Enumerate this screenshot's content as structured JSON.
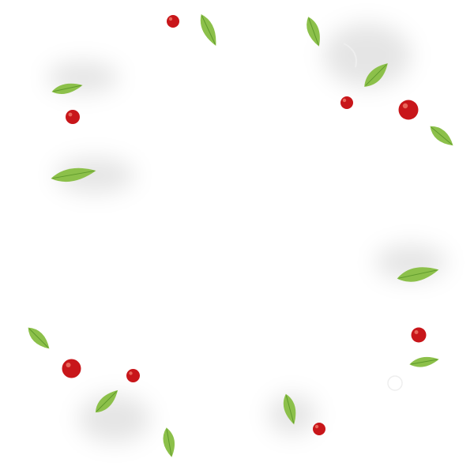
{
  "scene": {
    "background_color": "#ffffff",
    "leaf_color": "#8cc04a",
    "leaf_vein_color": "#5f9a2c",
    "tomato_color": "#c8161a",
    "tomato_highlight_color": "#f07a6a",
    "shadow_color": "#cfcfcf"
  }
}
